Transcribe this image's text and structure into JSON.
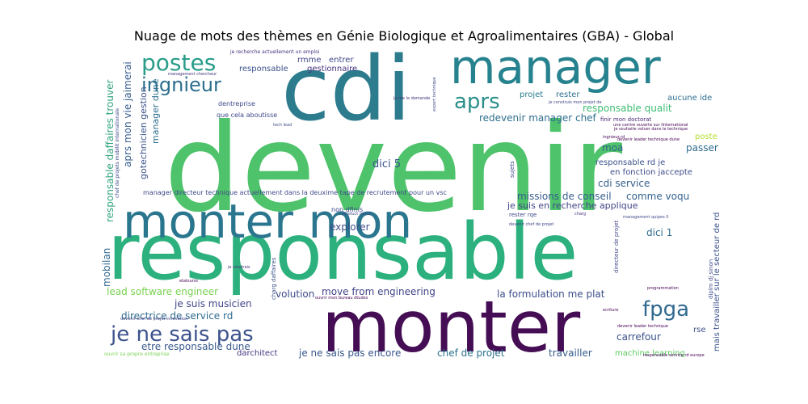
{
  "chart_data": {
    "type": "wordcloud",
    "title": "Nuage de mots des thèmes en Génie Biologique et Agroalimentaires (GBA) - Global",
    "background": "#ffffff",
    "colormap": "viridis",
    "words": [
      {
        "text": "devenir",
        "weight": 100,
        "color": "#4ec36b"
      },
      {
        "text": "responsable",
        "weight": 92,
        "color": "#2cb17e"
      },
      {
        "text": "cdi",
        "weight": 76,
        "color": "#2c7c8e"
      },
      {
        "text": "monter",
        "weight": 70,
        "color": "#450d54"
      },
      {
        "text": "manager",
        "weight": 48,
        "color": "#26828e"
      },
      {
        "text": "monter mon",
        "weight": 44,
        "color": "#2a768e"
      },
      {
        "text": "je ne sais pas",
        "weight": 22,
        "color": "#3b528b"
      },
      {
        "text": "postes",
        "weight": 22,
        "color": "#2a9d8a"
      },
      {
        "text": "fpga",
        "weight": 22,
        "color": "#30698e"
      },
      {
        "text": "aprs",
        "weight": 20,
        "color": "#2a8f8a"
      },
      {
        "text": "ingnieur",
        "weight": 20,
        "color": "#2d6f8e"
      },
      {
        "text": "dici 5",
        "weight": 10,
        "color": "#3a548c"
      },
      {
        "text": "cdi service",
        "weight": 9,
        "color": "#355f8d"
      },
      {
        "text": "explorer",
        "weight": 9,
        "color": "#3d4e8a"
      },
      {
        "text": "carrefour",
        "weight": 9,
        "color": "#3a538b"
      },
      {
        "text": "move from engineering",
        "weight": 9,
        "color": "#414487"
      },
      {
        "text": "la formulation me plat",
        "weight": 9,
        "color": "#3c4f8a"
      },
      {
        "text": "je ne sais pas encore",
        "weight": 9,
        "color": "#39568c"
      },
      {
        "text": "chef de projet",
        "weight": 9,
        "color": "#2c718e"
      },
      {
        "text": "travailler",
        "weight": 9,
        "color": "#365c8d"
      },
      {
        "text": "etre responsable dune",
        "weight": 9,
        "color": "#38588c"
      },
      {
        "text": "directrice de service rd",
        "weight": 9,
        "color": "#2f6b8e"
      },
      {
        "text": "volution",
        "weight": 9,
        "color": "#3e4a89"
      },
      {
        "text": "je suis musicien",
        "weight": 9,
        "color": "#404688"
      },
      {
        "text": "lead software engineer",
        "weight": 9,
        "color": "#7ad151"
      },
      {
        "text": "missions de conseil",
        "weight": 9,
        "color": "#365d8d"
      },
      {
        "text": "comme voqu",
        "weight": 9,
        "color": "#33638d"
      },
      {
        "text": "redevenir manager chef",
        "weight": 9,
        "color": "#2e6e8e"
      },
      {
        "text": "responsable qualit",
        "weight": 9,
        "color": "#3fbc73"
      },
      {
        "text": "responsable",
        "weight": 8,
        "color": "#3b518b"
      },
      {
        "text": "gestionnaire",
        "weight": 8,
        "color": "#46327e"
      },
      {
        "text": "rmme",
        "weight": 8,
        "color": "#404588"
      },
      {
        "text": "entrer",
        "weight": 8,
        "color": "#3e4989"
      },
      {
        "text": "projet",
        "weight": 8,
        "color": "#287c8e"
      },
      {
        "text": "rester",
        "weight": 8,
        "color": "#2c738e"
      },
      {
        "text": "aucune ide",
        "weight": 8,
        "color": "#2d708e"
      },
      {
        "text": "moa",
        "weight": 9,
        "color": "#34608d"
      },
      {
        "text": "passer",
        "weight": 9,
        "color": "#2e6e8e"
      },
      {
        "text": "dici 1",
        "weight": 9,
        "color": "#2f6c8e"
      },
      {
        "text": "responsable rd je",
        "weight": 8,
        "color": "#3b518b"
      },
      {
        "text": "en fonction jaccepte",
        "weight": 8,
        "color": "#3e4c8a"
      },
      {
        "text": "je suis en recherche applique",
        "weight": 8,
        "color": "#414487"
      },
      {
        "text": "manager directeur technique  actuellement dans la deuxime tape de recrutement pour un vsc",
        "weight": 6,
        "color": "#3e4989"
      },
      {
        "text": "machine learning",
        "weight": 8,
        "color": "#5ec962"
      },
      {
        "text": "darchitect",
        "weight": 8,
        "color": "#463480"
      },
      {
        "text": "rse",
        "weight": 8,
        "color": "#3c4f8a"
      },
      {
        "text": "poste",
        "weight": 8,
        "color": "#b5de2b"
      },
      {
        "text": "non dfinis",
        "weight": 6,
        "color": "#3e4989"
      },
      {
        "text": "mobilan",
        "weight": 9,
        "color": "#31688e"
      },
      {
        "text": "responsable daffaires trouver",
        "weight": 9,
        "color": "#2ea37d"
      },
      {
        "text": "aprs mon vie jaimerai",
        "weight": 9,
        "color": "#365d8d"
      },
      {
        "text": "gotechnicien gestion",
        "weight": 8,
        "color": "#3b528b"
      },
      {
        "text": "manager dune",
        "weight": 8,
        "color": "#2d708e"
      },
      {
        "text": "que cela aboutisse",
        "weight": 6,
        "color": "#3e4a89"
      },
      {
        "text": "dentreprise",
        "weight": 6,
        "color": "#3e4a89"
      },
      {
        "text": "finir mon doctorat",
        "weight": 6,
        "color": "#482475"
      },
      {
        "text": "mais travailler sur le secteur de rd",
        "weight": 8,
        "color": "#3b528b"
      },
      {
        "text": "diplm dj sinon",
        "weight": 6,
        "color": "#3e4a89"
      },
      {
        "text": "charg daffaires",
        "weight": 6,
        "color": "#3b528b"
      },
      {
        "text": "directeur de projet",
        "weight": 6,
        "color": "#404588"
      },
      {
        "text": "chef de projets mobilit internationale",
        "weight": 5,
        "color": "#3e4a89"
      },
      {
        "text": "sujets",
        "weight": 6,
        "color": "#3e4989"
      },
      {
        "text": "je recherche actuellement un emploi",
        "weight": 4,
        "color": "#46327e"
      },
      {
        "text": "management chercheur",
        "weight": 4,
        "color": "#46327e"
      },
      {
        "text": "expert technique",
        "weight": 4,
        "color": "#3e4a89"
      },
      {
        "text": "je construis mon projet de",
        "weight": 4,
        "color": "#404588"
      },
      {
        "text": "je me le demande",
        "weight": 4,
        "color": "#46327e"
      },
      {
        "text": "tech lead",
        "weight": 4,
        "color": "#3e4a89"
      },
      {
        "text": "une carrire ouverte sur linternational",
        "weight": 4,
        "color": "#440154"
      },
      {
        "text": "je souhaite voluer dans le technique",
        "weight": 4,
        "color": "#440154"
      },
      {
        "text": "devenir leader technique dune",
        "weight": 4,
        "color": "#440154"
      },
      {
        "text": "product owner",
        "weight": 4,
        "color": "#3e4a89"
      },
      {
        "text": "rester rqe",
        "weight": 6,
        "color": "#3e4a89"
      },
      {
        "text": "management quipes 0",
        "weight": 4,
        "color": "#3e4a89"
      },
      {
        "text": "devenir chef de projet",
        "weight": 4,
        "color": "#404588"
      },
      {
        "text": "je voudrais",
        "weight": 4,
        "color": "#46327e"
      },
      {
        "text": "etatsunis",
        "weight": 4,
        "color": "#440154"
      },
      {
        "text": "programmation",
        "weight": 4,
        "color": "#440154"
      },
      {
        "text": "ouvrir mon bureau dtudes",
        "weight": 4,
        "color": "#440154"
      },
      {
        "text": "devenir chef de projet innovation",
        "weight": 4,
        "color": "#404588"
      },
      {
        "text": "devenir leader technique",
        "weight": 4,
        "color": "#440154"
      },
      {
        "text": "ouvrir sa propre entreprise",
        "weight": 4,
        "color": "#7ad151"
      },
      {
        "text": "responsable service rd europe",
        "weight": 4,
        "color": "#440154"
      },
      {
        "text": "ingnieur rd",
        "weight": 4,
        "color": "#440154"
      },
      {
        "text": "charg",
        "weight": 4,
        "color": "#46327e"
      },
      {
        "text": "ecriture",
        "weight": 4,
        "color": "#440154"
      }
    ]
  }
}
